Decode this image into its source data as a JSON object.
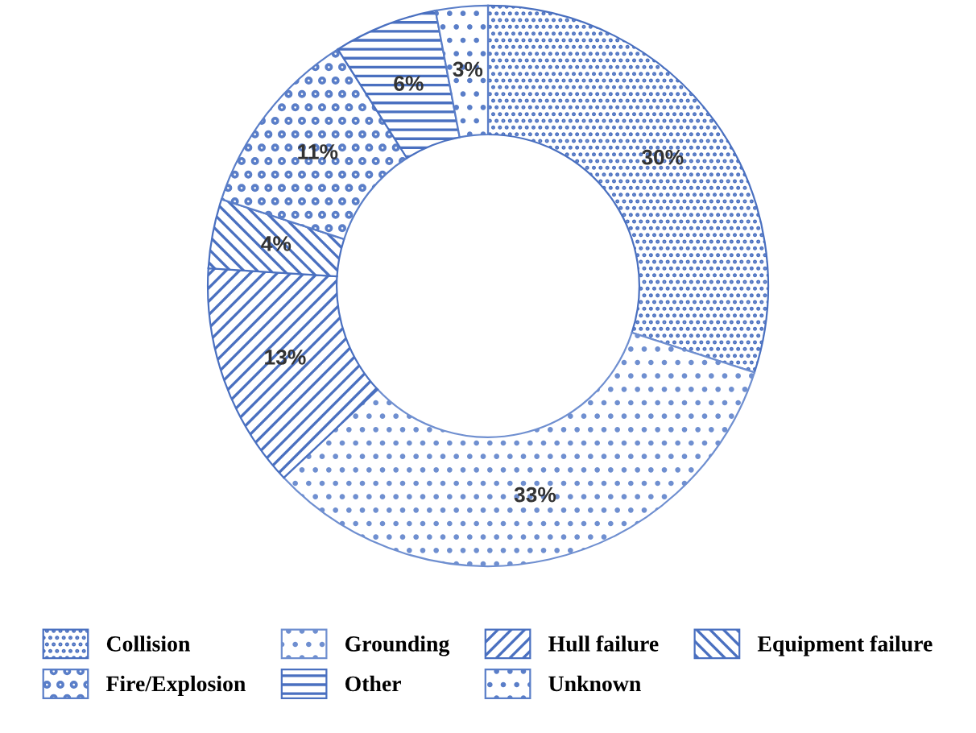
{
  "chart_data": {
    "type": "donut",
    "categories": [
      "Collision",
      "Grounding",
      "Hull failure",
      "Equipment failure",
      "Fire/Explosion",
      "Other",
      "Unknown"
    ],
    "values": [
      30,
      33,
      13,
      4,
      11,
      6,
      3
    ],
    "value_labels": [
      "30%",
      "33%",
      "13%",
      "4%",
      "11%",
      "6%",
      "3%"
    ],
    "colors": [
      "#4a70c0",
      "#6f8fd0",
      "#4a70c0",
      "#4a70c0",
      "#5a7ec8",
      "#4a70c0",
      "#5a7ec8"
    ],
    "legend": "bottom"
  }
}
